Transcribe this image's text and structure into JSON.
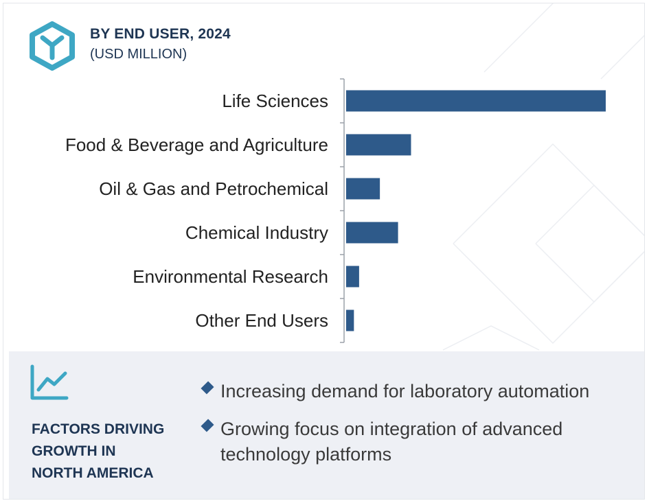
{
  "header": {
    "title": "BY END USER, 2024",
    "subtitle": "(USD MILLION)"
  },
  "colors": {
    "bar": "#2e5a8a",
    "brand": "#3ea7c4",
    "heading": "#1e3553",
    "panel_bg": "#eef0f5"
  },
  "icons": {
    "logo": "hexagon-y-logo-icon",
    "factors": "trend-chart-icon",
    "bullet": "diamond-bullet-icon"
  },
  "chart_data": {
    "type": "bar",
    "orientation": "horizontal",
    "categories": [
      "Life Sciences",
      "Food & Beverage and Agriculture",
      "Oil & Gas and Petrochemical",
      "Chemical Industry",
      "Environmental Research",
      "Other End Users"
    ],
    "values": [
      100,
      25,
      13,
      20,
      5,
      3
    ],
    "xlim": [
      0,
      100
    ],
    "grid": false,
    "legend": "none"
  },
  "factors": {
    "heading_lines": [
      "FACTORS DRIVING",
      "GROWTH IN",
      "NORTH AMERICA"
    ],
    "items": [
      [
        "Increasing demand for laboratory automation"
      ],
      [
        "Growing focus on integration of advanced",
        "technology platforms"
      ]
    ]
  }
}
